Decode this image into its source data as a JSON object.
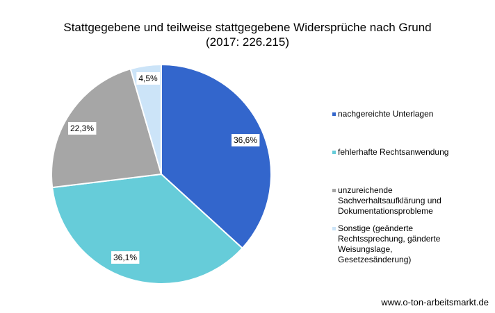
{
  "chart_data": {
    "type": "pie",
    "title": "Stattgegebene und teilweise stattgegebene Widersprüche nach Grund",
    "subtitle": "(2017: 226.215)",
    "categories": [
      "nachgereichte Unterlagen",
      "fehlerhafte Rechtsanwendung",
      "unzureichende Sachverhaltsaufklärung und Dokumentationsprobleme",
      "Sonstige (geänderte Rechtssprechung, gänderte Weisungslage, Gesetzesänderung)"
    ],
    "values": [
      36.6,
      36.1,
      22.3,
      4.5
    ],
    "data_labels": [
      "36,6%",
      "36,1%",
      "22,3%",
      "4,5%"
    ],
    "colors": [
      "#3366CC",
      "#66CCD9",
      "#A6A6A6",
      "#CCE4F8"
    ],
    "legend": "right",
    "start": "12 o'clock, clockwise"
  },
  "legend_labels": [
    "nachgereichte Unterlagen",
    "fehlerhafte Rechtsanwendung",
    "unzureichende\nSachverhaltsaufklärung und\nDokumentationsprobleme",
    "Sonstige (geänderte\nRechtssprechung, gänderte\nWeisungslage,\nGesetzesänderung)"
  ],
  "footer": "www.o-ton-arbeitsmarkt.de"
}
